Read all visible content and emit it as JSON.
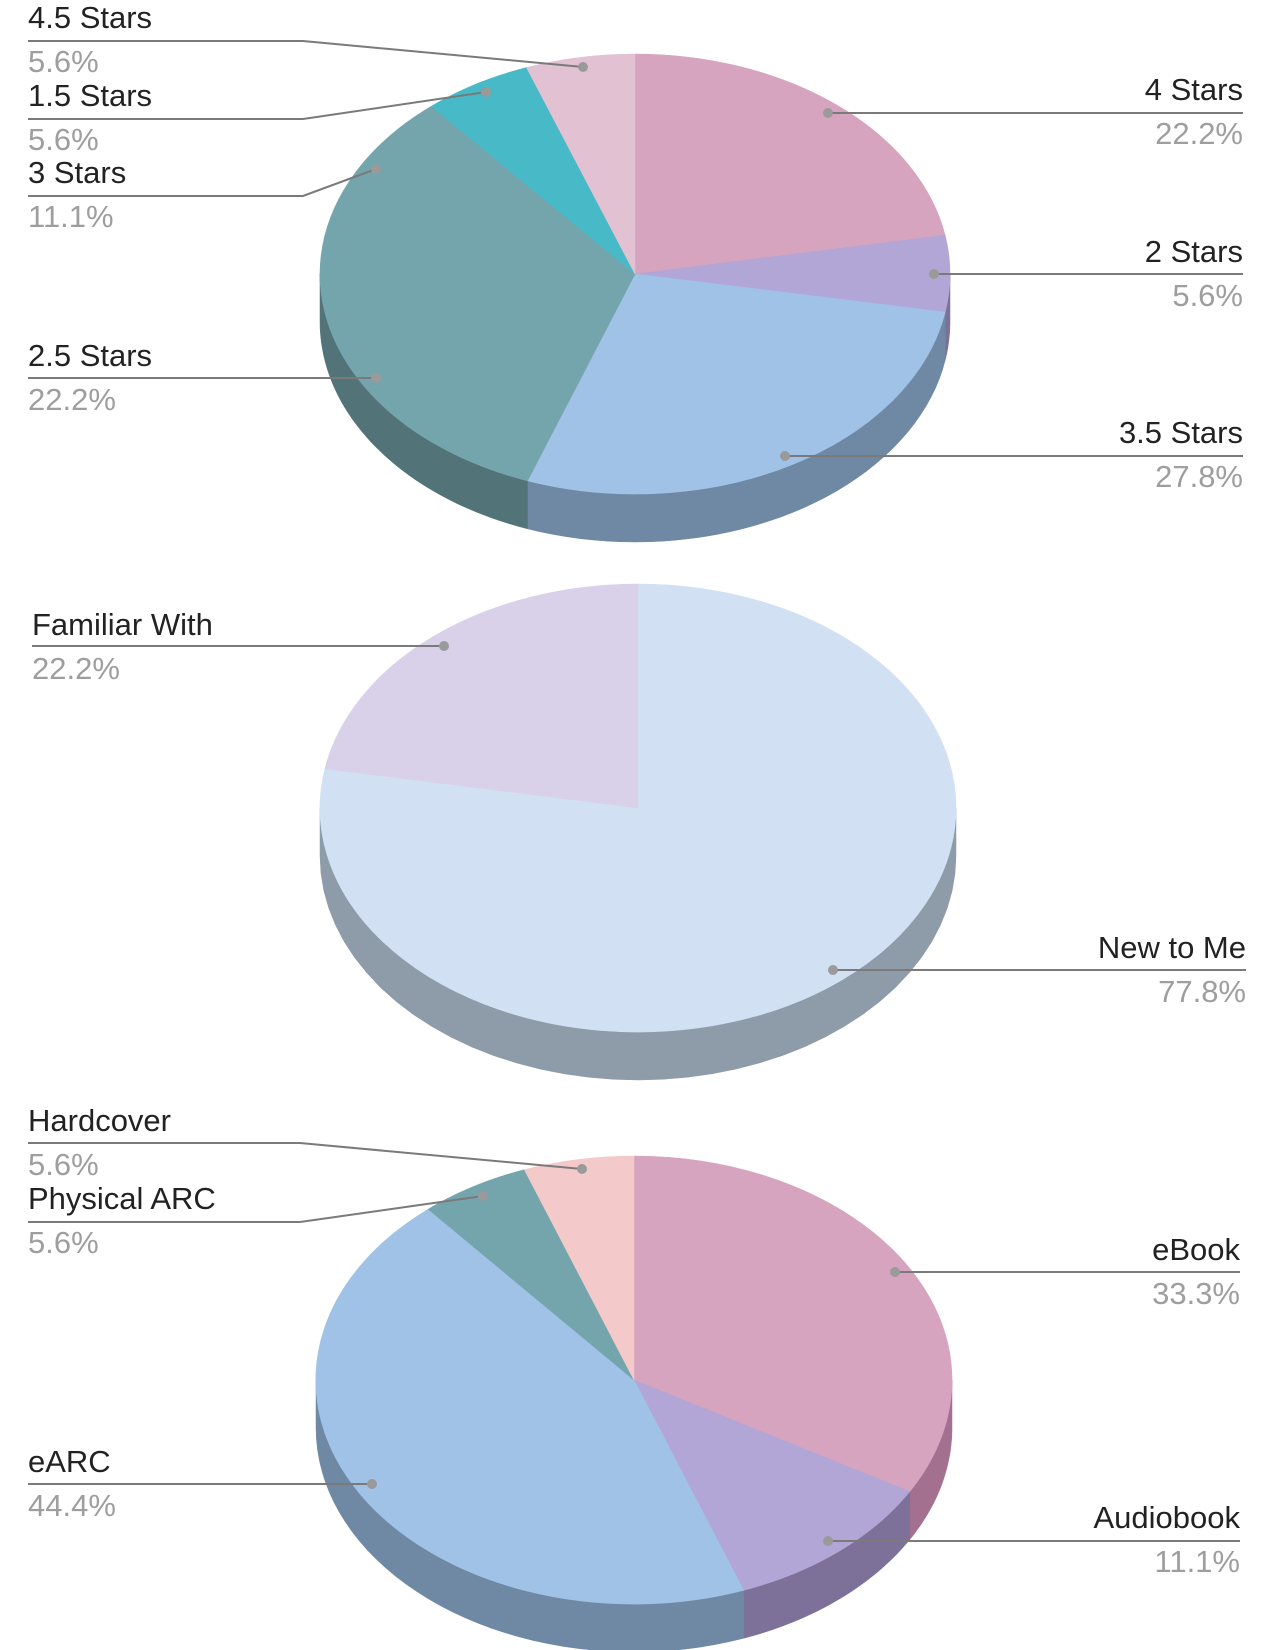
{
  "chart_data": [
    {
      "type": "pie",
      "categories": [
        "4 Stars",
        "2 Stars",
        "3.5 Stars",
        "2.5 Stars",
        "3 Stars",
        "1.5 Stars",
        "4.5 Stars"
      ],
      "values": [
        22.2,
        5.6,
        27.8,
        22.2,
        11.1,
        5.6,
        5.6
      ],
      "labels": [
        "22.2%",
        "5.6%",
        "27.8%",
        "22.2%",
        "11.1%",
        "5.6%",
        "5.6%"
      ],
      "colors": [
        "#d6a4bf",
        "#b1a6d6",
        "#9fc2e6",
        "#75a5ac",
        "#75a5ac",
        "#48b9c6",
        "#e2c1d2"
      ],
      "side_colors": [
        "#a3708f",
        "#7e7199",
        "#6f89a4",
        "#527479",
        "#527479",
        "#2f8a94",
        "#b38c9f"
      ]
    },
    {
      "type": "pie",
      "categories": [
        "New to Me",
        "Familiar With"
      ],
      "values": [
        77.8,
        22.2
      ],
      "labels": [
        "77.8%",
        "22.2%"
      ],
      "colors": [
        "#d1e1f3",
        "#d9d1ea"
      ],
      "side_colors": [
        "#8e9ba8",
        "#9c96aa"
      ]
    },
    {
      "type": "pie",
      "categories": [
        "eBook",
        "Audiobook",
        "eARC",
        "Physical ARC",
        "Hardcover"
      ],
      "values": [
        33.3,
        11.1,
        44.4,
        5.6,
        5.6
      ],
      "labels": [
        "33.3%",
        "11.1%",
        "44.4%",
        "5.6%",
        "5.6%"
      ],
      "colors": [
        "#d6a4bf",
        "#b1a6d6",
        "#9fc2e6",
        "#75a5ac",
        "#f3c9ca"
      ],
      "side_colors": [
        "#a3708f",
        "#7e7199",
        "#6f89a4",
        "#527479",
        "#b39394"
      ]
    }
  ]
}
